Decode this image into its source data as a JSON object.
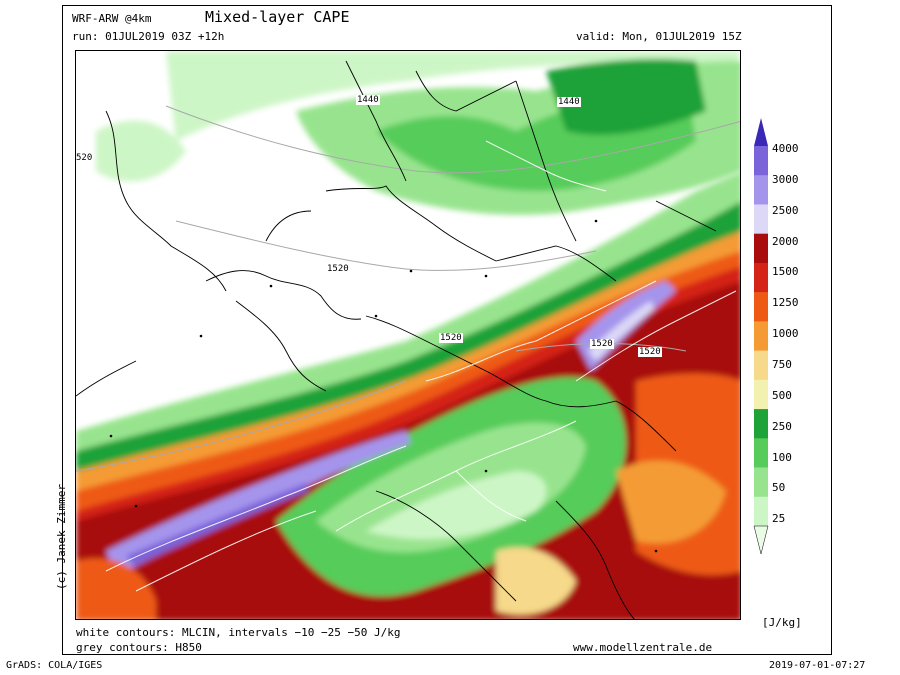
{
  "header": {
    "model": "WRF-ARW @4km",
    "title": "Mixed-layer CAPE",
    "run": "run: 01JUL2019 03Z +12h",
    "valid": "valid: Mon, 01JUL2019 15Z"
  },
  "map": {
    "contour_labels": [
      "1440",
      "1440",
      "520",
      "1520",
      "1520",
      "1520",
      "1520"
    ]
  },
  "legend": {
    "values": [
      "4000",
      "3000",
      "2500",
      "2000",
      "1500",
      "1250",
      "1000",
      "750",
      "500",
      "250",
      "100",
      "50",
      "25"
    ],
    "colors": [
      "#3a27b5",
      "#7b64d9",
      "#a594ec",
      "#dcd8f6",
      "#a80c0c",
      "#d42418",
      "#ee5a14",
      "#f49b34",
      "#f6d98a",
      "#f3f1b0",
      "#1fa238",
      "#57cc5a",
      "#98e48e",
      "#cdf6c6",
      "#eafbe6"
    ],
    "unit": "[J/kg]"
  },
  "footer": {
    "white_contours": "white contours: MLCIN, intervals −10 −25 −50 J/kg",
    "grey_contours": "grey contours: H850",
    "website": "www.modellzentrale.de",
    "grads": "GrADS: COLA/IGES",
    "timestamp": "2019-07-01-07:27"
  },
  "copyright": "(c) Janek Zimmer"
}
